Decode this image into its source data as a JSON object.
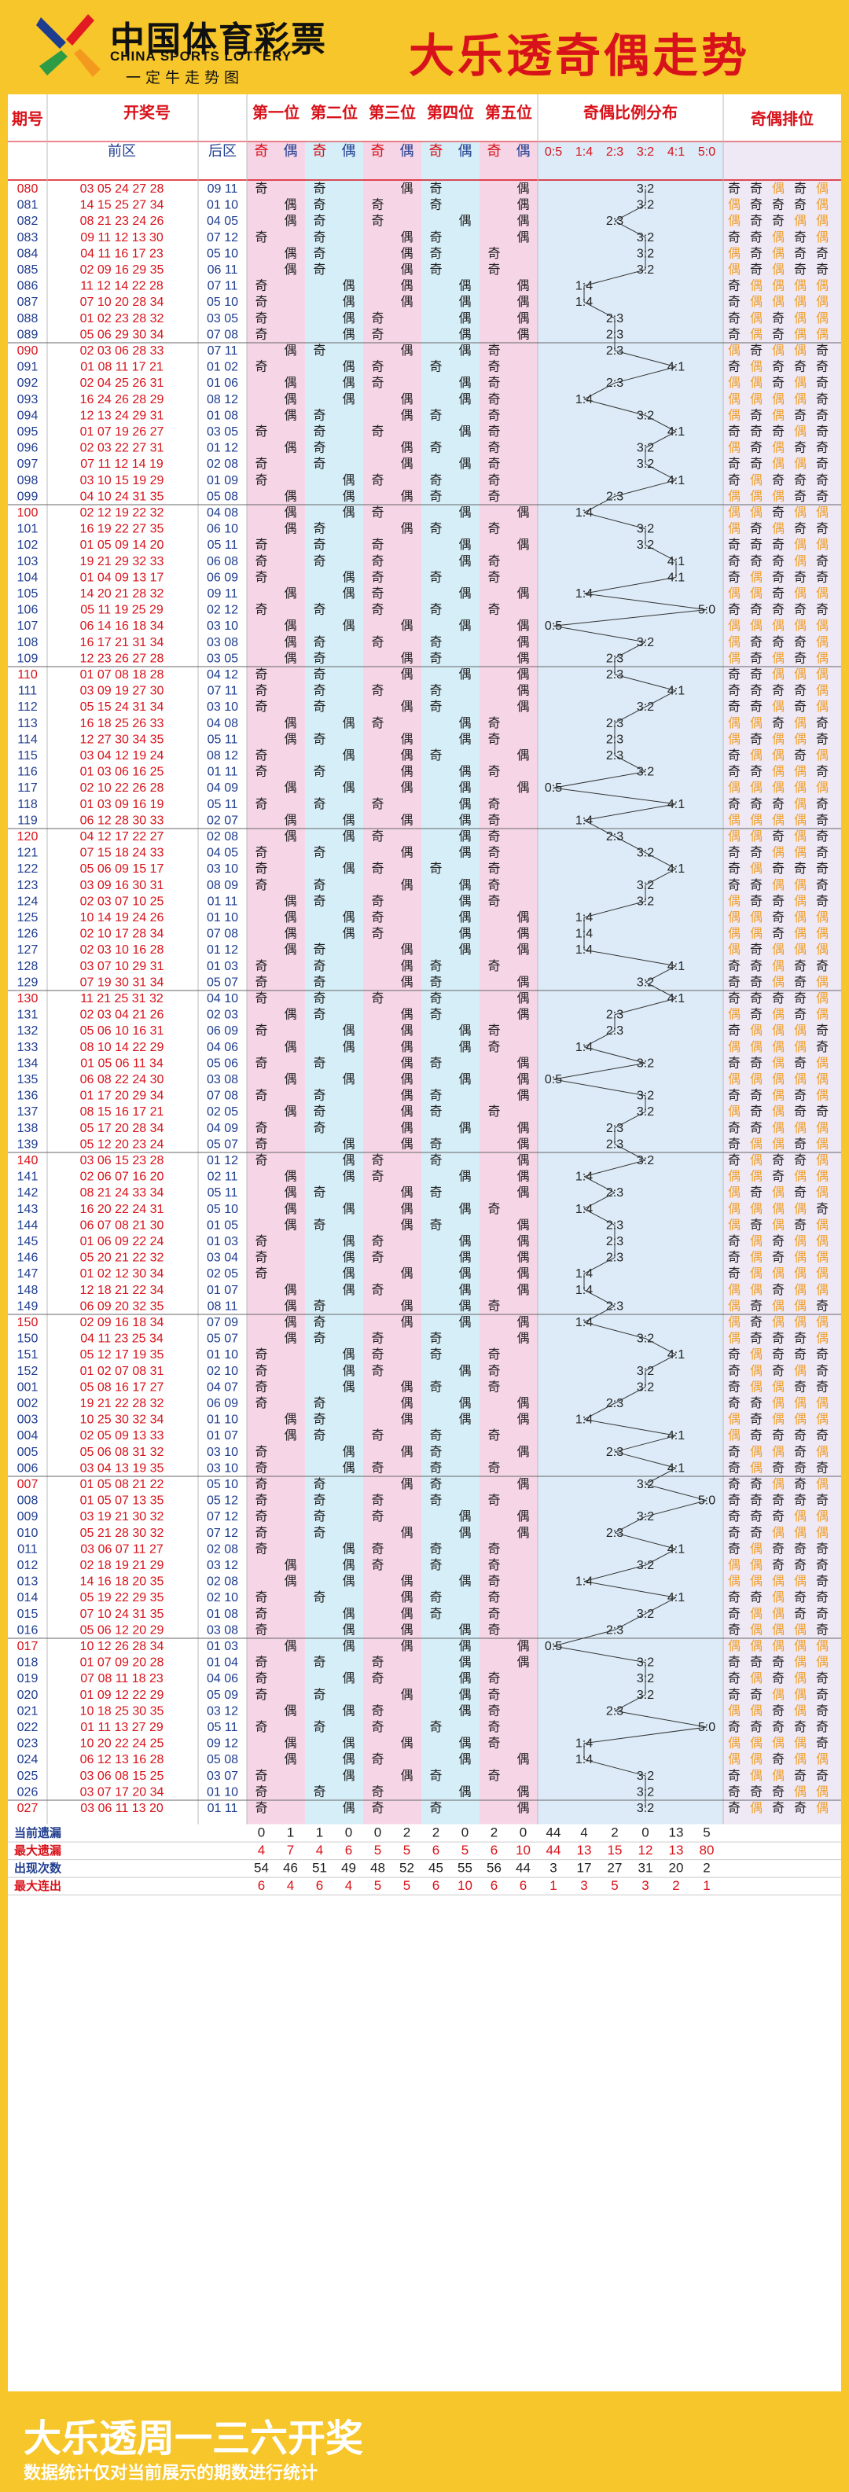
{
  "header": {
    "logo_cn": "中国体育彩票",
    "logo_en": "CHINA SPORTS LOTTERY",
    "logo_slogan": "一定牛走势图",
    "title": "大乐透奇偶走势",
    "brand_colors": [
      "#f7c62a",
      "#d8121a",
      "#1f3d8f",
      "#2e9b45"
    ]
  },
  "footer": {
    "title": "大乐透周一三六开奖",
    "note": "数据统计仅对当前展示的期数进行统计"
  },
  "chart_data": {
    "type": "table",
    "columns": {
      "period": "期号",
      "numbers": "开奖号",
      "front": "前区",
      "back": "后区",
      "positions": [
        "第一位",
        "第二位",
        "第三位",
        "第四位",
        "第五位"
      ],
      "odd": "奇",
      "even": "偶",
      "ratio_header": "奇偶比例分布",
      "ratios": [
        "0:5",
        "1:4",
        "2:3",
        "3:2",
        "4:1",
        "5:0"
      ],
      "order_header": "奇偶排位"
    },
    "draws": [
      [
        "080",
        "03 05 24 27 28",
        "09 11"
      ],
      [
        "081",
        "14 15 25 27 34",
        "01 10"
      ],
      [
        "082",
        "08 21 23 24 26",
        "04 05"
      ],
      [
        "083",
        "09 11 12 13 30",
        "07 12"
      ],
      [
        "084",
        "04 11 16 17 23",
        "05 10"
      ],
      [
        "085",
        "02 09 16 29 35",
        "06 11"
      ],
      [
        "086",
        "11 12 14 22 28",
        "07 11"
      ],
      [
        "087",
        "07 10 20 28 34",
        "05 10"
      ],
      [
        "088",
        "01 02 23 28 32",
        "03 05"
      ],
      [
        "089",
        "05 06 29 30 34",
        "07 08"
      ],
      [
        "090",
        "02 03 06 28 33",
        "07 11"
      ],
      [
        "091",
        "01 08 11 17 21",
        "01 02"
      ],
      [
        "092",
        "02 04 25 26 31",
        "01 06"
      ],
      [
        "093",
        "16 24 26 28 29",
        "08 12"
      ],
      [
        "094",
        "12 13 24 29 31",
        "01 08"
      ],
      [
        "095",
        "01 07 19 26 27",
        "03 05"
      ],
      [
        "096",
        "02 03 22 27 31",
        "01 12"
      ],
      [
        "097",
        "07 11 12 14 19",
        "02 08"
      ],
      [
        "098",
        "03 10 15 19 29",
        "01 09"
      ],
      [
        "099",
        "04 10 24 31 35",
        "05 08"
      ],
      [
        "100",
        "02 12 19 22 32",
        "04 08"
      ],
      [
        "101",
        "16 19 22 27 35",
        "06 10"
      ],
      [
        "102",
        "01 05 09 14 20",
        "05 11"
      ],
      [
        "103",
        "19 21 29 32 33",
        "06 08"
      ],
      [
        "104",
        "01 04 09 13 17",
        "06 09"
      ],
      [
        "105",
        "14 20 21 28 32",
        "09 11"
      ],
      [
        "106",
        "05 11 19 25 29",
        "02 12"
      ],
      [
        "107",
        "06 14 16 18 34",
        "03 10"
      ],
      [
        "108",
        "16 17 21 31 34",
        "03 08"
      ],
      [
        "109",
        "12 23 26 27 28",
        "03 05"
      ],
      [
        "110",
        "01 07 08 18 28",
        "04 12"
      ],
      [
        "111",
        "03 09 19 27 30",
        "07 11"
      ],
      [
        "112",
        "05 15 24 31 34",
        "03 10"
      ],
      [
        "113",
        "16 18 25 26 33",
        "04 08"
      ],
      [
        "114",
        "12 27 30 34 35",
        "05 11"
      ],
      [
        "115",
        "03 04 12 19 24",
        "08 12"
      ],
      [
        "116",
        "01 03 06 16 25",
        "01 11"
      ],
      [
        "117",
        "02 10 22 26 28",
        "04 09"
      ],
      [
        "118",
        "01 03 09 16 19",
        "05 11"
      ],
      [
        "119",
        "06 12 28 30 33",
        "02 07"
      ],
      [
        "120",
        "04 12 17 22 27",
        "02 08"
      ],
      [
        "121",
        "07 15 18 24 33",
        "04 05"
      ],
      [
        "122",
        "05 06 09 15 17",
        "03 10"
      ],
      [
        "123",
        "03 09 16 30 31",
        "08 09"
      ],
      [
        "124",
        "02 03 07 10 25",
        "01 11"
      ],
      [
        "125",
        "10 14 19 24 26",
        "01 10"
      ],
      [
        "126",
        "02 10 17 28 34",
        "07 08"
      ],
      [
        "127",
        "02 03 10 16 28",
        "01 12"
      ],
      [
        "128",
        "03 07 10 29 31",
        "01 03"
      ],
      [
        "129",
        "07 19 30 31 34",
        "05 07"
      ],
      [
        "130",
        "11 21 25 31 32",
        "04 10"
      ],
      [
        "131",
        "02 03 04 21 26",
        "02 03"
      ],
      [
        "132",
        "05 06 10 16 31",
        "06 09"
      ],
      [
        "133",
        "08 10 14 22 29",
        "04 06"
      ],
      [
        "134",
        "01 05 06 11 34",
        "05 06"
      ],
      [
        "135",
        "06 08 22 24 30",
        "03 08"
      ],
      [
        "136",
        "01 17 20 29 34",
        "07 08"
      ],
      [
        "137",
        "08 15 16 17 21",
        "02 05"
      ],
      [
        "138",
        "05 17 20 28 34",
        "04 09"
      ],
      [
        "139",
        "05 12 20 23 24",
        "05 07"
      ],
      [
        "140",
        "03 06 15 23 28",
        "01 12"
      ],
      [
        "141",
        "02 06 07 16 20",
        "02 11"
      ],
      [
        "142",
        "08 21 24 33 34",
        "05 11"
      ],
      [
        "143",
        "16 20 22 24 31",
        "05 10"
      ],
      [
        "144",
        "06 07 08 21 30",
        "01 05"
      ],
      [
        "145",
        "01 06 09 22 24",
        "01 03"
      ],
      [
        "146",
        "05 20 21 22 32",
        "03 04"
      ],
      [
        "147",
        "01 02 12 30 34",
        "02 05"
      ],
      [
        "148",
        "12 18 21 22 34",
        "01 07"
      ],
      [
        "149",
        "06 09 20 32 35",
        "08 11"
      ],
      [
        "150",
        "02 09 16 18 34",
        "07 09"
      ],
      [
        "150b",
        "04 11 23 25 34",
        "05 07"
      ],
      [
        "151",
        "05 12 17 19 35",
        "01 10"
      ],
      [
        "152",
        "01 02 07 08 31",
        "02 10"
      ],
      [
        "001",
        "05 08 16 17 27",
        "04 07"
      ],
      [
        "002",
        "19 21 22 28 32",
        "06 09"
      ],
      [
        "003",
        "10 25 30 32 34",
        "01 10"
      ],
      [
        "004",
        "02 05 09 13 33",
        "01 07"
      ],
      [
        "005",
        "05 06 08 31 32",
        "03 10"
      ],
      [
        "006",
        "03 04 13 19 35",
        "03 10"
      ],
      [
        "007",
        "01 05 08 21 22",
        "05 10"
      ],
      [
        "008",
        "01 05 07 13 35",
        "05 12"
      ],
      [
        "009",
        "03 19 21 30 32",
        "07 12"
      ],
      [
        "010",
        "05 21 28 30 32",
        "07 12"
      ],
      [
        "011",
        "03 06 07 11 27",
        "02 08"
      ],
      [
        "012",
        "02 18 19 21 29",
        "03 12"
      ],
      [
        "013",
        "14 16 18 20 35",
        "02 08"
      ],
      [
        "014",
        "05 19 22 29 35",
        "02 10"
      ],
      [
        "015",
        "07 10 24 31 35",
        "01 08"
      ],
      [
        "016",
        "05 06 12 20 29",
        "03 08"
      ],
      [
        "017",
        "10 12 26 28 34",
        "01 03"
      ],
      [
        "018",
        "01 07 09 20 28",
        "01 04"
      ],
      [
        "019",
        "07 08 11 18 23",
        "04 06"
      ],
      [
        "020",
        "01 09 12 22 29",
        "05 09"
      ],
      [
        "021",
        "10 18 25 30 35",
        "03 12"
      ],
      [
        "022",
        "01 11 13 27 29",
        "05 11"
      ],
      [
        "023",
        "10 20 22 24 25",
        "09 12"
      ],
      [
        "024",
        "06 12 13 16 28",
        "05 08"
      ],
      [
        "025",
        "03 06 08 15 25",
        "03 07"
      ],
      [
        "026",
        "03 07 17 20 34",
        "01 10"
      ],
      [
        "027",
        "03 06 11 13 20",
        "01 11"
      ]
    ],
    "stat_labels": [
      "当前遗漏",
      "最大遗漏",
      "出现次数",
      "最大连出"
    ],
    "stats": [
      [
        0,
        1,
        1,
        0,
        0,
        2,
        2,
        0,
        2,
        0,
        44,
        4,
        2,
        0,
        13,
        5
      ],
      [
        4,
        7,
        4,
        6,
        5,
        5,
        6,
        5,
        6,
        10,
        44,
        13,
        15,
        12,
        13,
        80
      ],
      [
        54,
        46,
        51,
        49,
        48,
        52,
        45,
        55,
        56,
        44,
        3,
        17,
        27,
        31,
        20,
        2
      ],
      [
        6,
        4,
        6,
        4,
        5,
        5,
        6,
        10,
        6,
        6,
        1,
        3,
        5,
        3,
        2,
        1
      ]
    ],
    "colors": {
      "odd_col": "#f6d5e6",
      "even_col": "#d6eef8",
      "ratio_bg": "#dcebf7",
      "order_bg": "#efe8f5",
      "red": "#d8121a",
      "blue": "#1f3d8f",
      "orange": "#f0a02b"
    }
  }
}
